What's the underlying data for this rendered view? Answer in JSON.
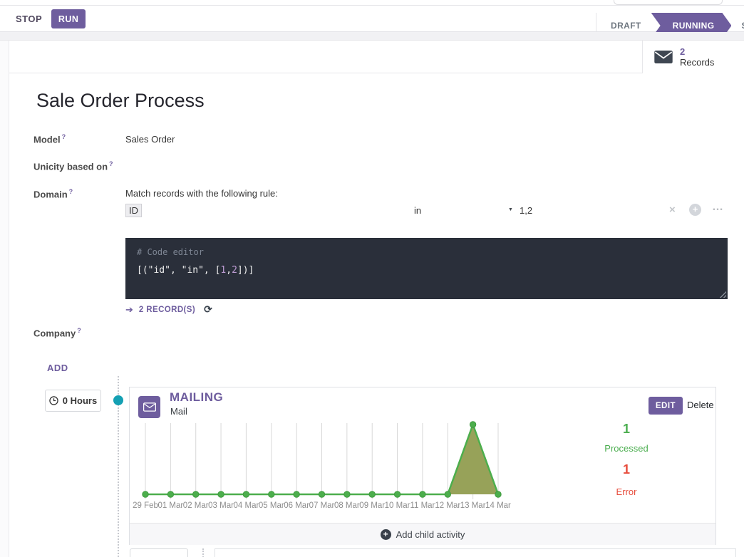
{
  "topbar": {
    "stop": "STOP",
    "run": "RUN",
    "stages": [
      {
        "label": "DRAFT"
      },
      {
        "label": "RUNNING"
      },
      {
        "label": "STOPPED"
      }
    ],
    "active_stage": "RUNNING"
  },
  "button_box": {
    "count": "2",
    "label": "Records"
  },
  "sheet": {
    "title": "Sale Order Process",
    "help_marker": "?",
    "fields": {
      "model": {
        "label": "Model",
        "value": "Sales Order"
      },
      "unicity": {
        "label": "Unicity based on"
      },
      "domain": {
        "label": "Domain",
        "intro": "Match records with the following rule:",
        "rule": {
          "field": "ID",
          "operator": "in",
          "value": "1,2"
        },
        "code_comment": "# Code editor",
        "code": "[(\"id\", \"in\", [1,2])]",
        "records_link": "2 RECORD(S)"
      },
      "company": {
        "label": "Company"
      }
    },
    "add_button": "ADD"
  },
  "workflow": {
    "trigger": "0 Hours",
    "activity": {
      "title": "MAILING",
      "subtitle": "Mail",
      "edit": "EDIT",
      "delete": "Delete",
      "stats": [
        {
          "value": "1",
          "label": "Processed"
        },
        {
          "value": "1",
          "label": "Error"
        }
      ],
      "footer": "Add child activity"
    }
  },
  "chart_data": {
    "type": "area",
    "categories": [
      "29 Feb",
      "01 Mar",
      "02 Mar",
      "03 Mar",
      "04 Mar",
      "05 Mar",
      "06 Mar",
      "07 Mar",
      "08 Mar",
      "09 Mar",
      "10 Mar",
      "11 Mar",
      "12 Mar",
      "13 Mar",
      "14 Mar"
    ],
    "values": [
      0,
      0,
      0,
      0,
      0,
      0,
      0,
      0,
      0,
      0,
      0,
      0,
      0,
      1,
      0
    ],
    "ylim": [
      0,
      1
    ],
    "grid": "vertical-only",
    "legend": "none",
    "line_color": "#4cae4c",
    "point_color": "#4cae4c",
    "fill_color": "#97a259",
    "gridline_color": "#d8d8d8",
    "label_color": "#8d8d8d"
  },
  "icons": {
    "close": "×",
    "add_node": "+",
    "more": "…",
    "caret": "▼",
    "refresh": "⟳",
    "arrow": "➔",
    "plus": "+"
  },
  "colors": {
    "primary": "#6e5d9e",
    "success": "#4cae50",
    "danger": "#e74c3c",
    "timeline_dot": "#14a0b3"
  }
}
